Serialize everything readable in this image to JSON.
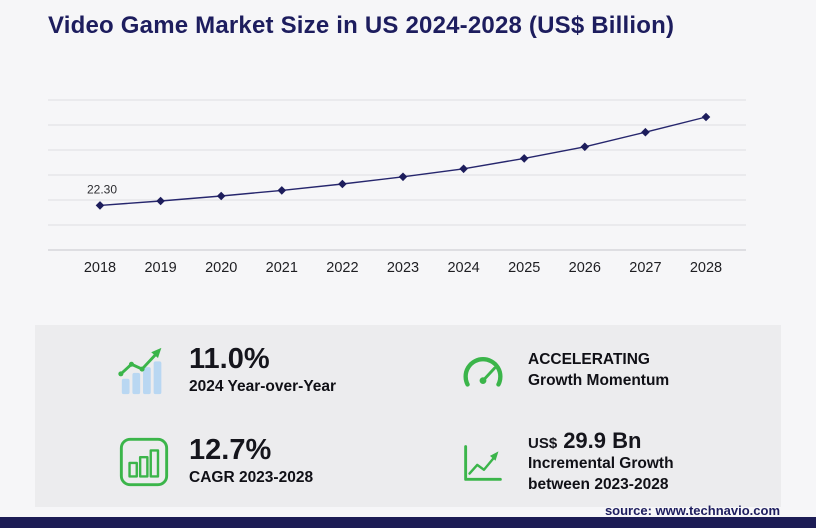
{
  "page": {
    "title": "Video Game Market Size in US 2024-2028 (US$ Billion)",
    "source": "source: www.technavio.com"
  },
  "colors": {
    "accent_green": "#3bb54a",
    "navy": "#1d1d5e",
    "light_blue_bars": "#b9d7f2",
    "footer_bar": "#1c1c55",
    "chart_line": "#26266d",
    "chart_marker": "#1d1d5c"
  },
  "chart_data": {
    "type": "line",
    "title": "Video Game Market Size in US 2024-2028 (US$ Billion)",
    "x": [
      "2018",
      "2019",
      "2020",
      "2021",
      "2022",
      "2023",
      "2024",
      "2025",
      "2026",
      "2027",
      "2028"
    ],
    "values": [
      22.3,
      24.5,
      27.0,
      29.8,
      33.0,
      36.6,
      40.6,
      45.8,
      51.6,
      58.9,
      66.5
    ],
    "first_point_label": "22.30",
    "xlabel": "",
    "ylabel": "",
    "ylim": [
      0,
      75
    ],
    "grid": true,
    "legend": "none",
    "marker": "diamond",
    "line_color": "#26266d",
    "marker_color": "#1d1d5c"
  },
  "stats": [
    {
      "icon": "growth-bars-icon",
      "value": "11.0%",
      "label": "2024 Year-over-Year"
    },
    {
      "icon": "speedometer-icon",
      "line1": "ACCELERATING",
      "line2": "Growth Momentum"
    },
    {
      "icon": "cagr-bars-icon",
      "value": "12.7%",
      "label": "CAGR 2023-2028"
    },
    {
      "icon": "incremental-growth-icon",
      "prefix": "US$",
      "value": "29.9 Bn",
      "line1": "Incremental Growth",
      "line2": "between 2023-2028"
    }
  ]
}
